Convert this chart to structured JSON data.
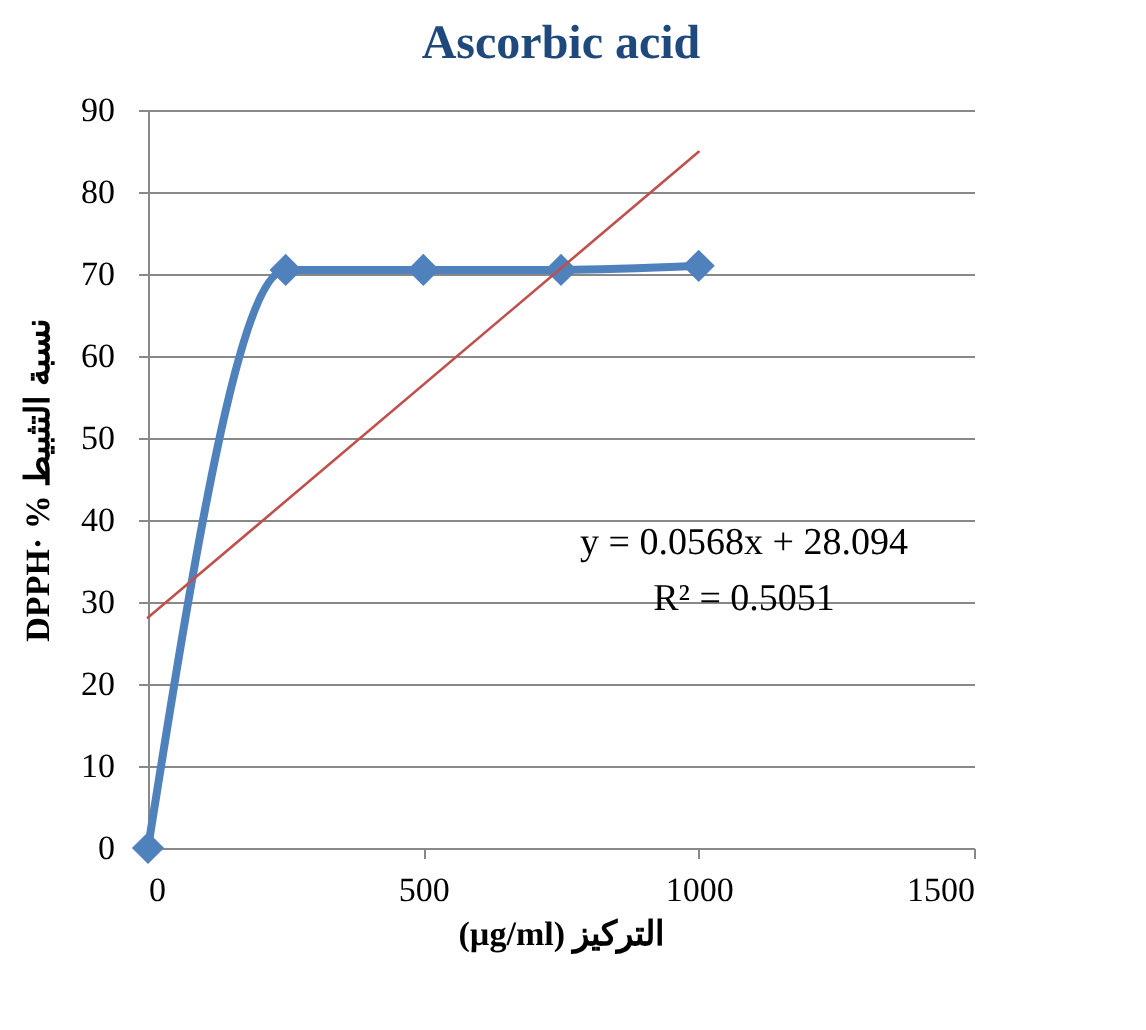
{
  "chart_data": {
    "type": "line",
    "title": "Ascorbic acid",
    "xlabel": "(µg/ml) التركيز",
    "ylabel": "DPPH· % نسبة التثبيط",
    "xlim": [
      0,
      1500
    ],
    "xticks": [
      0,
      500,
      1000,
      1500
    ],
    "ylim": [
      0,
      90
    ],
    "yticks": [
      0,
      10,
      20,
      30,
      40,
      50,
      60,
      70,
      80,
      90
    ],
    "grid": "y",
    "marker": "diamond",
    "series": [
      {
        "color": "#4f81bd",
        "line_style": "solid",
        "x": [
          0,
          250,
          500,
          750,
          1000
        ],
        "values": [
          0,
          70.5,
          70.5,
          70.5,
          71
        ]
      },
      {
        "color": "#c0504d",
        "line_style": "solid",
        "marker": "none",
        "x": [
          0,
          1000
        ],
        "values": [
          28.1,
          84.9
        ]
      }
    ],
    "annotations": [
      "y = 0.0568x + 28.094",
      "R² = 0.5051"
    ]
  }
}
